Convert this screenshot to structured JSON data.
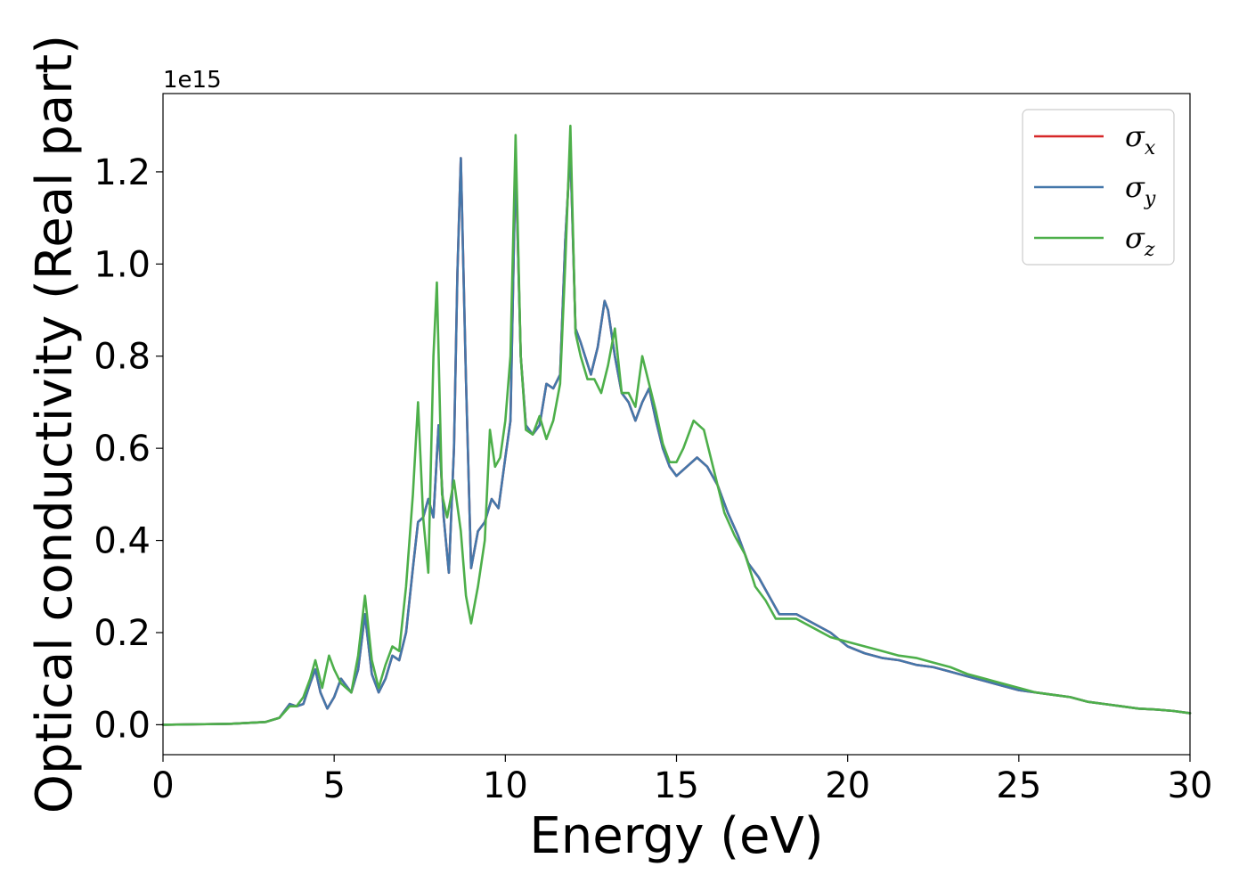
{
  "chart_data": {
    "type": "line",
    "title": "",
    "xlabel": "Energy (eV)",
    "ylabel": "Optical conductivity (Real part)",
    "y_offset_label": "1e15",
    "xlim": [
      0,
      30
    ],
    "ylim": [
      -0.065,
      1.37
    ],
    "x_ticks": [
      0,
      5,
      10,
      15,
      20,
      25,
      30
    ],
    "x_tick_labels": [
      "0",
      "5",
      "10",
      "15",
      "20",
      "25",
      "30"
    ],
    "y_ticks": [
      0.0,
      0.2,
      0.4,
      0.6,
      0.8,
      1.0,
      1.2
    ],
    "y_tick_labels": [
      "0.0",
      "0.2",
      "0.4",
      "0.6",
      "0.8",
      "1.0",
      "1.2"
    ],
    "grid": false,
    "legend_position": "top-right",
    "series": [
      {
        "name": "σx",
        "legend_symbol": "σ",
        "legend_subscript": "x",
        "color": "#d62728",
        "x": [
          0,
          1,
          2,
          3,
          3.4,
          3.7,
          3.9,
          4.1,
          4.3,
          4.45,
          4.6,
          4.8,
          5.0,
          5.2,
          5.5,
          5.7,
          5.9,
          6.1,
          6.3,
          6.5,
          6.7,
          6.9,
          7.1,
          7.3,
          7.45,
          7.6,
          7.75,
          7.9,
          8.05,
          8.2,
          8.35,
          8.5,
          8.6,
          8.7,
          8.85,
          9.0,
          9.2,
          9.4,
          9.6,
          9.8,
          10.0,
          10.15,
          10.3,
          10.45,
          10.6,
          10.8,
          11.0,
          11.2,
          11.4,
          11.6,
          11.75,
          11.9,
          12.05,
          12.2,
          12.5,
          12.7,
          12.9,
          13.0,
          13.2,
          13.4,
          13.6,
          13.8,
          14.0,
          14.2,
          14.4,
          14.6,
          14.8,
          15.0,
          15.3,
          15.6,
          15.9,
          16.2,
          16.5,
          16.8,
          17.1,
          17.4,
          17.7,
          18.0,
          18.5,
          19.0,
          19.5,
          20.0,
          20.5,
          21.0,
          21.5,
          22.0,
          22.5,
          23.0,
          23.5,
          24.0,
          24.5,
          25.0,
          25.5,
          26.0,
          26.5,
          27.0,
          27.5,
          28.0,
          28.5,
          29.0,
          29.5,
          30.0
        ],
        "y": [
          0.0,
          0.001,
          0.002,
          0.006,
          0.015,
          0.045,
          0.04,
          0.045,
          0.09,
          0.12,
          0.07,
          0.035,
          0.06,
          0.1,
          0.07,
          0.12,
          0.24,
          0.11,
          0.07,
          0.1,
          0.15,
          0.14,
          0.2,
          0.34,
          0.44,
          0.45,
          0.49,
          0.45,
          0.65,
          0.45,
          0.33,
          0.6,
          0.98,
          1.23,
          0.75,
          0.34,
          0.42,
          0.44,
          0.49,
          0.47,
          0.58,
          0.66,
          1.23,
          0.8,
          0.65,
          0.63,
          0.65,
          0.74,
          0.73,
          0.76,
          1.05,
          1.25,
          0.86,
          0.83,
          0.76,
          0.82,
          0.92,
          0.9,
          0.8,
          0.72,
          0.7,
          0.66,
          0.7,
          0.73,
          0.66,
          0.6,
          0.56,
          0.54,
          0.56,
          0.58,
          0.56,
          0.52,
          0.46,
          0.41,
          0.35,
          0.32,
          0.28,
          0.24,
          0.24,
          0.22,
          0.2,
          0.17,
          0.155,
          0.145,
          0.14,
          0.13,
          0.125,
          0.115,
          0.105,
          0.095,
          0.085,
          0.075,
          0.07,
          0.065,
          0.06,
          0.05,
          0.045,
          0.04,
          0.035,
          0.033,
          0.03,
          0.025
        ]
      },
      {
        "name": "σy",
        "legend_symbol": "σ",
        "legend_subscript": "y",
        "color": "#4477aa",
        "x": [
          0,
          1,
          2,
          3,
          3.4,
          3.7,
          3.9,
          4.1,
          4.3,
          4.45,
          4.6,
          4.8,
          5.0,
          5.2,
          5.5,
          5.7,
          5.9,
          6.1,
          6.3,
          6.5,
          6.7,
          6.9,
          7.1,
          7.3,
          7.45,
          7.6,
          7.75,
          7.9,
          8.05,
          8.2,
          8.35,
          8.5,
          8.6,
          8.7,
          8.85,
          9.0,
          9.2,
          9.4,
          9.6,
          9.8,
          10.0,
          10.15,
          10.3,
          10.45,
          10.6,
          10.8,
          11.0,
          11.2,
          11.4,
          11.6,
          11.75,
          11.9,
          12.05,
          12.2,
          12.5,
          12.7,
          12.9,
          13.0,
          13.2,
          13.4,
          13.6,
          13.8,
          14.0,
          14.2,
          14.4,
          14.6,
          14.8,
          15.0,
          15.3,
          15.6,
          15.9,
          16.2,
          16.5,
          16.8,
          17.1,
          17.4,
          17.7,
          18.0,
          18.5,
          19.0,
          19.5,
          20.0,
          20.5,
          21.0,
          21.5,
          22.0,
          22.5,
          23.0,
          23.5,
          24.0,
          24.5,
          25.0,
          25.5,
          26.0,
          26.5,
          27.0,
          27.5,
          28.0,
          28.5,
          29.0,
          29.5,
          30.0
        ],
        "y": [
          0.0,
          0.001,
          0.002,
          0.006,
          0.015,
          0.045,
          0.04,
          0.045,
          0.09,
          0.12,
          0.07,
          0.035,
          0.06,
          0.1,
          0.07,
          0.12,
          0.24,
          0.11,
          0.07,
          0.1,
          0.15,
          0.14,
          0.2,
          0.34,
          0.44,
          0.45,
          0.49,
          0.45,
          0.65,
          0.45,
          0.33,
          0.6,
          0.98,
          1.23,
          0.75,
          0.34,
          0.42,
          0.44,
          0.49,
          0.47,
          0.58,
          0.66,
          1.23,
          0.8,
          0.65,
          0.63,
          0.65,
          0.74,
          0.73,
          0.76,
          1.05,
          1.25,
          0.86,
          0.83,
          0.76,
          0.82,
          0.92,
          0.9,
          0.8,
          0.72,
          0.7,
          0.66,
          0.7,
          0.73,
          0.66,
          0.6,
          0.56,
          0.54,
          0.56,
          0.58,
          0.56,
          0.52,
          0.46,
          0.41,
          0.35,
          0.32,
          0.28,
          0.24,
          0.24,
          0.22,
          0.2,
          0.17,
          0.155,
          0.145,
          0.14,
          0.13,
          0.125,
          0.115,
          0.105,
          0.095,
          0.085,
          0.075,
          0.07,
          0.065,
          0.06,
          0.05,
          0.045,
          0.04,
          0.035,
          0.033,
          0.03,
          0.025
        ]
      },
      {
        "name": "σz",
        "legend_symbol": "σ",
        "legend_subscript": "z",
        "color": "#4daf4a",
        "x": [
          0,
          1,
          2,
          3,
          3.4,
          3.7,
          3.9,
          4.1,
          4.3,
          4.45,
          4.65,
          4.85,
          5.0,
          5.2,
          5.5,
          5.7,
          5.9,
          6.1,
          6.3,
          6.5,
          6.7,
          6.9,
          7.1,
          7.3,
          7.45,
          7.6,
          7.75,
          7.9,
          8.0,
          8.15,
          8.3,
          8.5,
          8.7,
          8.85,
          9.0,
          9.2,
          9.4,
          9.55,
          9.7,
          9.85,
          10.0,
          10.15,
          10.3,
          10.45,
          10.6,
          10.8,
          11.0,
          11.2,
          11.4,
          11.6,
          11.75,
          11.9,
          12.05,
          12.2,
          12.4,
          12.6,
          12.8,
          13.0,
          13.2,
          13.4,
          13.6,
          13.8,
          14.0,
          14.2,
          14.4,
          14.6,
          14.8,
          15.0,
          15.2,
          15.5,
          15.8,
          16.1,
          16.4,
          16.7,
          17.0,
          17.3,
          17.6,
          17.9,
          18.5,
          19.0,
          19.5,
          20.0,
          20.5,
          21.0,
          21.5,
          22.0,
          22.5,
          23.0,
          23.5,
          24.0,
          24.5,
          25.0,
          25.5,
          26.0,
          26.5,
          27.0,
          27.5,
          28.0,
          28.5,
          29.0,
          29.5,
          30.0
        ],
        "y": [
          0.0,
          0.001,
          0.002,
          0.006,
          0.015,
          0.04,
          0.04,
          0.06,
          0.1,
          0.14,
          0.08,
          0.15,
          0.12,
          0.09,
          0.07,
          0.15,
          0.28,
          0.14,
          0.08,
          0.13,
          0.17,
          0.16,
          0.3,
          0.5,
          0.7,
          0.45,
          0.33,
          0.8,
          0.96,
          0.5,
          0.45,
          0.53,
          0.42,
          0.28,
          0.22,
          0.3,
          0.4,
          0.64,
          0.56,
          0.58,
          0.66,
          0.8,
          1.28,
          0.8,
          0.64,
          0.63,
          0.67,
          0.62,
          0.66,
          0.74,
          1.0,
          1.3,
          0.85,
          0.8,
          0.75,
          0.75,
          0.72,
          0.78,
          0.86,
          0.72,
          0.72,
          0.69,
          0.8,
          0.74,
          0.68,
          0.61,
          0.57,
          0.57,
          0.6,
          0.66,
          0.64,
          0.55,
          0.46,
          0.41,
          0.37,
          0.3,
          0.27,
          0.23,
          0.23,
          0.21,
          0.19,
          0.18,
          0.17,
          0.16,
          0.15,
          0.145,
          0.135,
          0.125,
          0.11,
          0.1,
          0.09,
          0.08,
          0.07,
          0.065,
          0.06,
          0.05,
          0.045,
          0.04,
          0.035,
          0.033,
          0.03,
          0.025
        ]
      }
    ]
  }
}
